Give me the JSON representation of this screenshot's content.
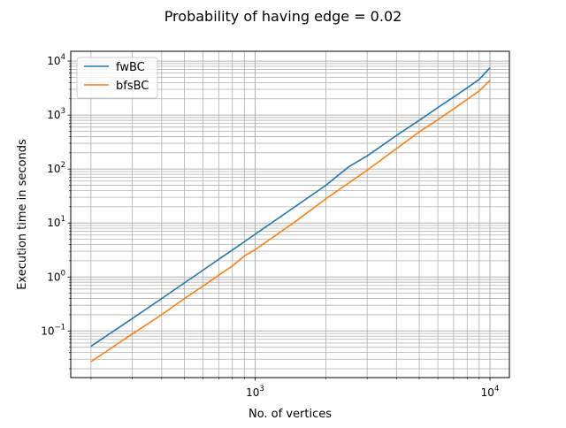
{
  "chart_data": {
    "type": "line",
    "title": "Probability of having edge = 0.02",
    "xlabel": "No. of vertices",
    "ylabel": "Execution time in seconds",
    "xscale": "log",
    "yscale": "log",
    "xlim": [
      164,
      12100
    ],
    "ylim": [
      0.0137,
      15200
    ],
    "grid": "major and minor",
    "legend_position": "top-left",
    "x_major_ticks": [
      {
        "value": 1000,
        "base": "10",
        "exp": "3"
      },
      {
        "value": 10000,
        "base": "10",
        "exp": "4"
      }
    ],
    "y_major_ticks": [
      {
        "value": 0.1,
        "base": "10",
        "exp": "−1"
      },
      {
        "value": 1,
        "base": "10",
        "exp": "0"
      },
      {
        "value": 10,
        "base": "10",
        "exp": "1"
      },
      {
        "value": 100,
        "base": "10",
        "exp": "2"
      },
      {
        "value": 1000,
        "base": "10",
        "exp": "3"
      },
      {
        "value": 10000,
        "base": "10",
        "exp": "4"
      }
    ],
    "series": [
      {
        "name": "fwBC",
        "color": "#1f77b4",
        "x": [
          200,
          300,
          400,
          500,
          600,
          700,
          800,
          900,
          1000,
          1500,
          2000,
          2500,
          3000,
          4000,
          5000,
          6000,
          7000,
          8000,
          9000,
          10000
        ],
        "y": [
          0.052,
          0.17,
          0.4,
          0.78,
          1.34,
          2.13,
          3.17,
          4.5,
          6.2,
          21,
          50,
          110,
          175,
          420,
          800,
          1380,
          2150,
          3200,
          4600,
          7500
        ]
      },
      {
        "name": "bfsBC",
        "color": "#ff7f0e",
        "x": [
          200,
          300,
          400,
          500,
          600,
          700,
          800,
          900,
          1000,
          1500,
          2000,
          2500,
          3000,
          4000,
          5000,
          6000,
          7000,
          8000,
          9000,
          10000
        ],
        "y": [
          0.027,
          0.088,
          0.2,
          0.4,
          0.68,
          1.08,
          1.6,
          2.45,
          3.2,
          11,
          28,
          55,
          95,
          240,
          490,
          820,
          1300,
          1950,
          2800,
          4400
        ]
      }
    ]
  }
}
